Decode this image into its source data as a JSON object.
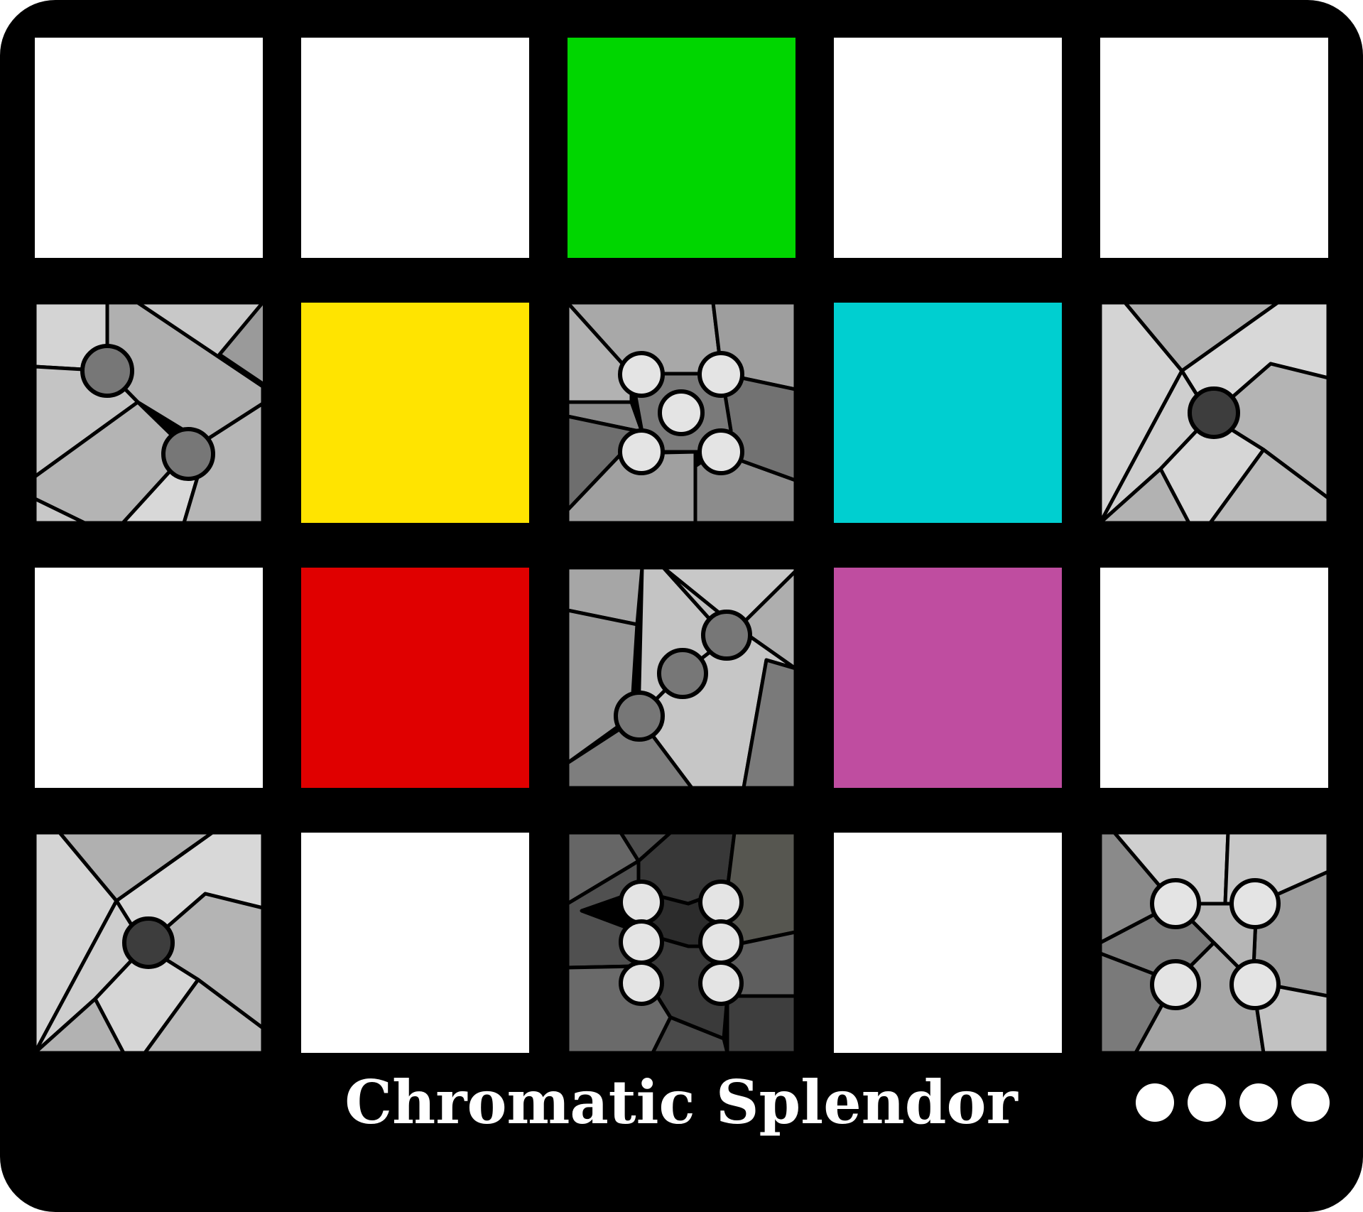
{
  "title": "Chromatic Splendor",
  "colors": {
    "board": "#000000",
    "empty": "#ffffff",
    "green": "#00d600",
    "yellow": "#ffe400",
    "cyan": "#00cfd0",
    "red": "#e00000",
    "magenta": "#bf4da0"
  },
  "grid": {
    "rows": 4,
    "cols": 5,
    "cells": [
      [
        "empty",
        "empty",
        "green",
        "empty",
        "empty"
      ],
      [
        "die-2",
        "yellow",
        "die-5",
        "cyan",
        "die-1"
      ],
      [
        "empty",
        "red",
        "die-3",
        "magenta",
        "empty"
      ],
      [
        "die-1",
        "empty",
        "die-6",
        "empty",
        "die-4"
      ]
    ]
  },
  "dice": {
    "r1c0": {
      "pips": 2,
      "pip_color": "#777777"
    },
    "r1c2": {
      "pips": 5,
      "pip_color": "#e4e4e4"
    },
    "r1c4": {
      "pips": 1,
      "pip_color": "#3d3d3d"
    },
    "r2c2": {
      "pips": 3,
      "pip_color": "#777777"
    },
    "r3c0": {
      "pips": 1,
      "pip_color": "#3d3d3d"
    },
    "r3c2": {
      "pips": 6,
      "pip_color": "#e4e4e4"
    },
    "r3c4": {
      "pips": 4,
      "pip_color": "#e4e4e4"
    }
  },
  "indicator": {
    "count": 4,
    "color": "#ffffff"
  }
}
